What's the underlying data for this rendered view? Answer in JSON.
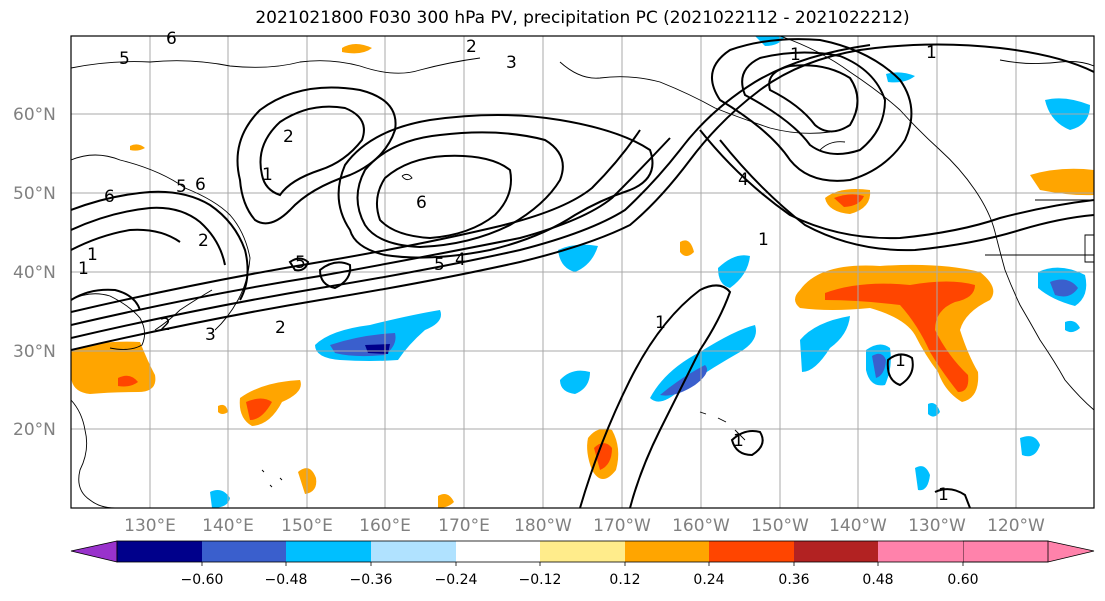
{
  "title": "2021021800 F030 300 hPa PV, precipitation PC (2021022112 - 2021022212)",
  "lat_labels": [
    "60°N",
    "50°N",
    "40°N",
    "30°N",
    "20°N"
  ],
  "lon_labels": [
    "130°E",
    "140°E",
    "150°E",
    "160°E",
    "170°E",
    "180°W",
    "170°W",
    "160°W",
    "150°W",
    "140°W",
    "130°W",
    "120°W"
  ],
  "colorbar": {
    "ticks": [
      "−0.60",
      "−0.48",
      "−0.36",
      "−0.24",
      "−0.12",
      "0.12",
      "0.24",
      "0.36",
      "0.48",
      "0.60"
    ],
    "colors": [
      "#9932cc",
      "#00008b",
      "#3a5fcd",
      "#00bfff",
      "#b0e2ff",
      "#ffffff",
      "#ffec8b",
      "#ffa500",
      "#ff4500",
      "#b22222",
      "#ff82ab"
    ]
  },
  "contour_labels": [
    "5",
    "6",
    "2",
    "3",
    "2",
    "1",
    "6",
    "5",
    "1",
    "2",
    "6",
    "1",
    "2",
    "5",
    "5",
    "4",
    "6",
    "3",
    "2",
    "1",
    "1",
    "1",
    "1",
    "1",
    "1",
    "4",
    "1"
  ]
}
